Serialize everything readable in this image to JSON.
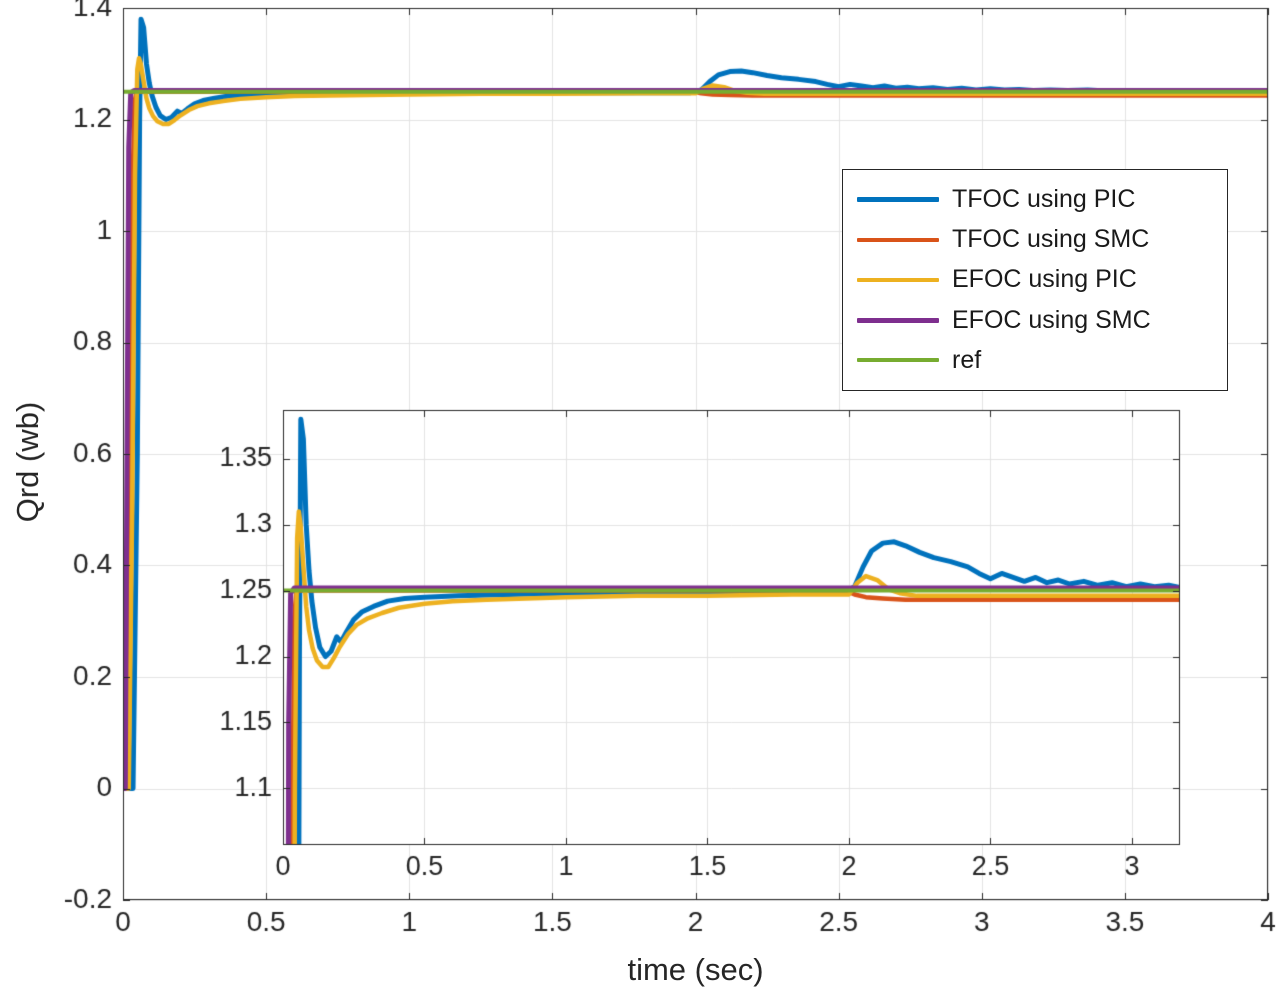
{
  "figure": {
    "background": "#ffffff",
    "axis_color": "#262626",
    "grid_color": "#e3e3e3",
    "text_color": "#262626"
  },
  "chart_data": {
    "type": "line",
    "title": "",
    "xlabel": "time (sec)",
    "ylabel": "Qrd (wb)",
    "xlim": [
      0,
      4
    ],
    "ylim": [
      -0.2,
      1.4
    ],
    "xticks": [
      0,
      0.5,
      1,
      1.5,
      2,
      2.5,
      3,
      3.5,
      4
    ],
    "xticklabels": [
      "0",
      "0.5",
      "1",
      "1.5",
      "2",
      "2.5",
      "3",
      "3.5",
      "4"
    ],
    "yticks": [
      -0.2,
      0,
      0.2,
      0.4,
      0.6,
      0.8,
      1,
      1.2,
      1.4
    ],
    "yticklabels": [
      "-0.2",
      "0",
      "0.2",
      "0.4",
      "0.6",
      "0.8",
      "1",
      "1.2",
      "1.4"
    ],
    "grid": true,
    "legend": {
      "position": "upper right"
    },
    "series": [
      {
        "name": "TFOC using PIC",
        "color": "#0072BD",
        "width": 5,
        "points": [
          [
            0,
            0
          ],
          [
            0.035,
            0
          ],
          [
            0.05,
            0.6
          ],
          [
            0.058,
            1.2
          ],
          [
            0.063,
            1.38
          ],
          [
            0.072,
            1.365
          ],
          [
            0.082,
            1.3
          ],
          [
            0.092,
            1.265
          ],
          [
            0.102,
            1.242
          ],
          [
            0.115,
            1.222
          ],
          [
            0.13,
            1.207
          ],
          [
            0.15,
            1.2
          ],
          [
            0.17,
            1.204
          ],
          [
            0.19,
            1.215
          ],
          [
            0.205,
            1.211
          ],
          [
            0.225,
            1.219
          ],
          [
            0.25,
            1.228
          ],
          [
            0.28,
            1.234
          ],
          [
            0.32,
            1.238
          ],
          [
            0.37,
            1.242
          ],
          [
            0.43,
            1.244
          ],
          [
            0.5,
            1.245
          ],
          [
            0.62,
            1.246
          ],
          [
            0.8,
            1.247
          ],
          [
            1,
            1.248
          ],
          [
            1.5,
            1.248
          ],
          [
            1.98,
            1.248
          ],
          [
            2.02,
            1.253
          ],
          [
            2.05,
            1.268
          ],
          [
            2.08,
            1.28
          ],
          [
            2.12,
            1.286
          ],
          [
            2.16,
            1.287
          ],
          [
            2.2,
            1.284
          ],
          [
            2.25,
            1.279
          ],
          [
            2.3,
            1.275
          ],
          [
            2.36,
            1.272
          ],
          [
            2.42,
            1.268
          ],
          [
            2.46,
            1.263
          ],
          [
            2.5,
            1.259
          ],
          [
            2.54,
            1.263
          ],
          [
            2.58,
            1.26
          ],
          [
            2.62,
            1.257
          ],
          [
            2.66,
            1.26
          ],
          [
            2.7,
            1.256
          ],
          [
            2.74,
            1.258
          ],
          [
            2.78,
            1.255
          ],
          [
            2.83,
            1.257
          ],
          [
            2.88,
            1.254
          ],
          [
            2.93,
            1.256
          ],
          [
            2.98,
            1.253
          ],
          [
            3.03,
            1.255
          ],
          [
            3.08,
            1.253
          ],
          [
            3.13,
            1.254
          ],
          [
            3.18,
            1.252
          ],
          [
            3.24,
            1.253
          ],
          [
            3.3,
            1.252
          ],
          [
            3.37,
            1.253
          ],
          [
            3.44,
            1.251
          ],
          [
            3.52,
            1.252
          ],
          [
            3.6,
            1.251
          ],
          [
            3.68,
            1.252
          ],
          [
            3.76,
            1.251
          ],
          [
            3.84,
            1.252
          ],
          [
            3.92,
            1.251
          ],
          [
            4,
            1.251
          ]
        ]
      },
      {
        "name": "TFOC using SMC",
        "color": "#D95319",
        "width": 4.5,
        "points": [
          [
            0,
            0
          ],
          [
            0.015,
            0
          ],
          [
            0.024,
            0.5
          ],
          [
            0.032,
            1.05
          ],
          [
            0.04,
            1.23
          ],
          [
            0.047,
            1.249
          ],
          [
            0.06,
            1.25
          ],
          [
            0.3,
            1.25
          ],
          [
            1,
            1.25
          ],
          [
            1.99,
            1.25
          ],
          [
            2.02,
            1.247
          ],
          [
            2.06,
            1.245
          ],
          [
            2.12,
            1.244
          ],
          [
            2.2,
            1.243
          ],
          [
            2.6,
            1.243
          ],
          [
            3,
            1.243
          ],
          [
            3.5,
            1.243
          ],
          [
            4,
            1.243
          ]
        ]
      },
      {
        "name": "EFOC using PIC",
        "color": "#EDB120",
        "width": 4.5,
        "points": [
          [
            0,
            0
          ],
          [
            0.02,
            0
          ],
          [
            0.032,
            0.5
          ],
          [
            0.042,
            1.1
          ],
          [
            0.05,
            1.29
          ],
          [
            0.056,
            1.31
          ],
          [
            0.062,
            1.3
          ],
          [
            0.072,
            1.268
          ],
          [
            0.082,
            1.238
          ],
          [
            0.092,
            1.22
          ],
          [
            0.105,
            1.206
          ],
          [
            0.12,
            1.197
          ],
          [
            0.14,
            1.192
          ],
          [
            0.16,
            1.192
          ],
          [
            0.18,
            1.199
          ],
          [
            0.2,
            1.207
          ],
          [
            0.23,
            1.217
          ],
          [
            0.26,
            1.224
          ],
          [
            0.3,
            1.229
          ],
          [
            0.35,
            1.233
          ],
          [
            0.41,
            1.237
          ],
          [
            0.5,
            1.24
          ],
          [
            0.6,
            1.242
          ],
          [
            0.72,
            1.243
          ],
          [
            0.86,
            1.244
          ],
          [
            1,
            1.245
          ],
          [
            1.25,
            1.246
          ],
          [
            1.5,
            1.246
          ],
          [
            1.8,
            1.247
          ],
          [
            2,
            1.247
          ],
          [
            2.03,
            1.256
          ],
          [
            2.06,
            1.261
          ],
          [
            2.1,
            1.258
          ],
          [
            2.14,
            1.251
          ],
          [
            2.18,
            1.248
          ],
          [
            2.24,
            1.246
          ],
          [
            2.35,
            1.246
          ],
          [
            2.6,
            1.246
          ],
          [
            3,
            1.246
          ],
          [
            3.5,
            1.246
          ],
          [
            4,
            1.246
          ]
        ]
      },
      {
        "name": "EFOC using SMC",
        "color": "#7E2F8E",
        "width": 5,
        "points": [
          [
            0,
            0
          ],
          [
            0.008,
            0
          ],
          [
            0.014,
            0.6
          ],
          [
            0.02,
            1.15
          ],
          [
            0.027,
            1.248
          ],
          [
            0.04,
            1.252
          ],
          [
            1,
            1.252
          ],
          [
            2,
            1.252
          ],
          [
            3,
            1.252
          ],
          [
            4,
            1.252
          ]
        ]
      },
      {
        "name": "ref",
        "color": "#77AC30",
        "width": 4,
        "points": [
          [
            0,
            1.25
          ],
          [
            4,
            1.25
          ]
        ]
      }
    ],
    "inset": {
      "xlim": [
        0,
        3.17
      ],
      "ylim": [
        1.057,
        1.387
      ],
      "xticks": [
        0,
        0.5,
        1,
        1.5,
        2,
        2.5,
        3
      ],
      "xticklabels": [
        "0",
        "0.5",
        "1",
        "1.5",
        "2",
        "2.5",
        "3"
      ],
      "yticks": [
        1.1,
        1.15,
        1.2,
        1.25,
        1.3,
        1.35
      ],
      "yticklabels": [
        "1.1",
        "1.15",
        "1.2",
        "1.25",
        "1.3",
        "1.35"
      ],
      "grid": true
    }
  }
}
